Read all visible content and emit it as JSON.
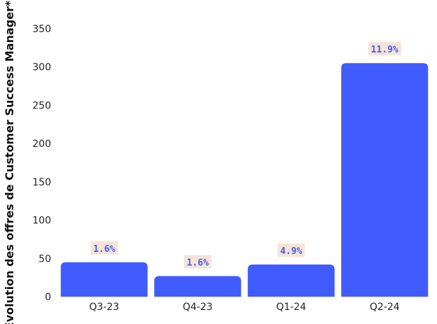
{
  "chart_data": {
    "type": "bar",
    "title": "",
    "xlabel": "",
    "ylabel": "Évolution des offres de Customer Success Manager*",
    "categories": [
      "Q3-23",
      "Q4-23",
      "Q1-24",
      "Q2-24"
    ],
    "values": [
      45,
      27,
      42,
      305
    ],
    "data_labels": [
      "1.6%",
      "1.6%",
      "4.9%",
      "11.9%"
    ],
    "ylim": [
      0,
      350
    ],
    "yticks": [
      0,
      50,
      100,
      150,
      200,
      250,
      300,
      350
    ],
    "grid": false,
    "legend": "none",
    "colors": {
      "bar": "#405cff",
      "label_text": "#405cff",
      "label_bg": "#f6e4d6"
    }
  }
}
